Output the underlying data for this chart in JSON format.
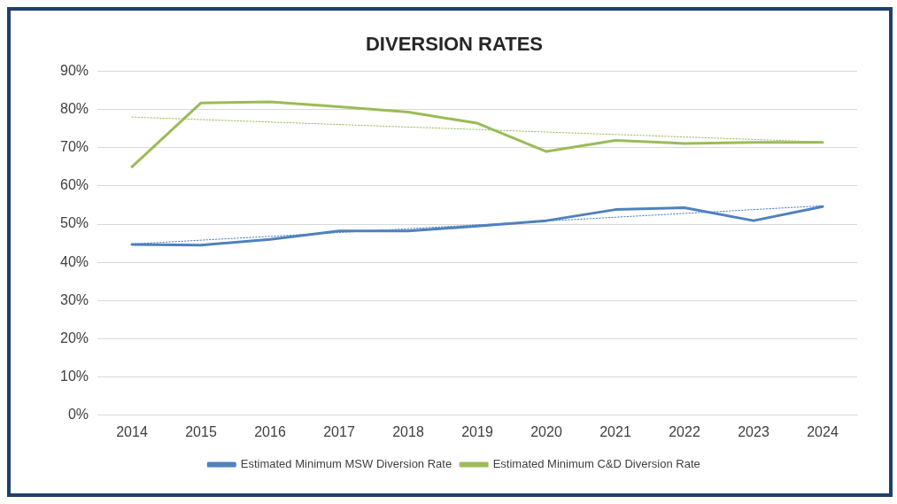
{
  "chart_data": {
    "type": "line",
    "title": "DIVERSION RATES",
    "categories": [
      "2014",
      "2015",
      "2016",
      "2017",
      "2018",
      "2019",
      "2020",
      "2021",
      "2022",
      "2023",
      "2024"
    ],
    "series": [
      {
        "name": "Estimated Minimum MSW Diversion Rate",
        "color": "#4f81bd",
        "values": [
          44.7,
          44.5,
          46,
          48.2,
          48.2,
          49.5,
          50.9,
          53.8,
          54.3,
          50.9,
          54.6
        ]
      },
      {
        "name": "Estimated Minimum C&D Diversion Rate",
        "color": "#9bbb59",
        "values": [
          65,
          81.7,
          82,
          80.7,
          79.3,
          76.4,
          69,
          71.9,
          71.1,
          71.4,
          71.4
        ]
      },
      {
        "type": "line",
        "line_style": "dotted",
        "color": "#4f81bd",
        "values": [
          44.8,
          null,
          null,
          null,
          null,
          null,
          null,
          null,
          null,
          null,
          54.8
        ]
      },
      {
        "type": "line",
        "line_style": "dotted",
        "color": "#9bbb59",
        "values": [
          78,
          null,
          null,
          null,
          null,
          null,
          null,
          null,
          null,
          null,
          71.5
        ]
      }
    ],
    "ylim": [
      0,
      90
    ],
    "yticks": [
      {
        "value": 0,
        "label": "0%"
      },
      {
        "value": 10,
        "label": "10%"
      },
      {
        "value": 20,
        "label": "20%"
      },
      {
        "value": 30,
        "label": "30%"
      },
      {
        "value": 40,
        "label": "40%"
      },
      {
        "value": 50,
        "label": "50%"
      },
      {
        "value": 60,
        "label": "60%"
      },
      {
        "value": 70,
        "label": "70%"
      },
      {
        "value": 80,
        "label": "80%"
      },
      {
        "value": 90,
        "label": "90%"
      }
    ],
    "grid": "y",
    "legend": "bottom",
    "line_style": "solid",
    "marker": "none"
  }
}
